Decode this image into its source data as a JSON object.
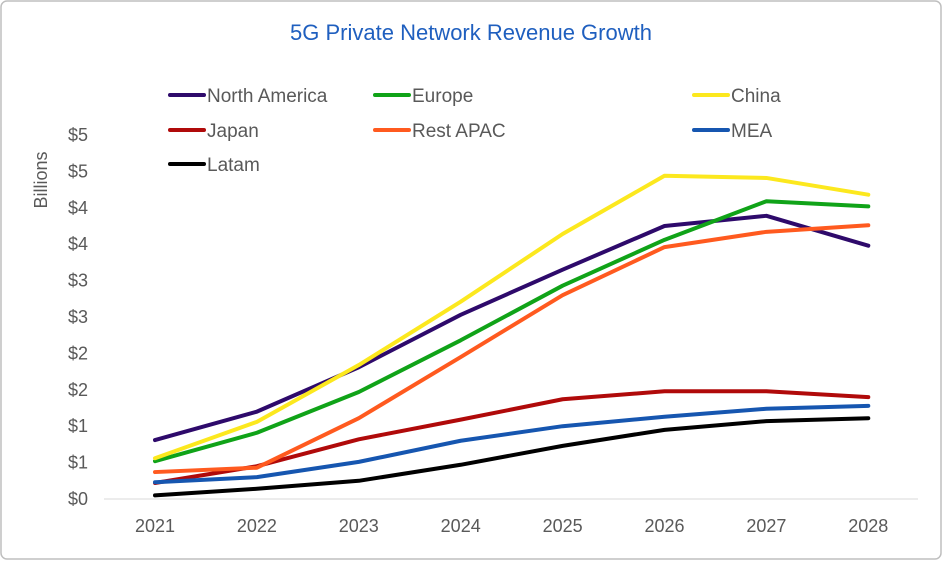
{
  "chart_data": {
    "type": "line",
    "title": "5G Private Network Revenue Growth",
    "xlabel": "",
    "ylabel": "Billions",
    "categories": [
      "2021",
      "2022",
      "2023",
      "2024",
      "2025",
      "2026",
      "2027",
      "2028"
    ],
    "ylim": [
      0,
      5
    ],
    "ytick_values": [
      0,
      0.5,
      1,
      1.5,
      2,
      2.5,
      3,
      3.5,
      4,
      4.5,
      5
    ],
    "ytick_labels": [
      "$0",
      "$1",
      "$1",
      "$2",
      "$2",
      "$3",
      "$3",
      "$4",
      "$4",
      "$5",
      "$5"
    ],
    "grid": false,
    "legend_position": "top",
    "title_color": "#1F5FBF",
    "series": [
      {
        "name": "North America",
        "color": "#2E0A6B",
        "values": [
          0.81,
          1.2,
          1.81,
          2.53,
          3.15,
          3.75,
          3.89,
          3.48
        ]
      },
      {
        "name": "Europe",
        "color": "#10A318",
        "values": [
          0.52,
          0.91,
          1.47,
          2.18,
          2.93,
          3.56,
          4.09,
          4.02
        ]
      },
      {
        "name": "China",
        "color": "#FCE81E",
        "values": [
          0.56,
          1.06,
          1.84,
          2.71,
          3.64,
          4.44,
          4.41,
          4.18
        ]
      },
      {
        "name": "Japan",
        "color": "#B00A0A",
        "values": [
          0.22,
          0.45,
          0.82,
          1.09,
          1.37,
          1.48,
          1.48,
          1.4
        ]
      },
      {
        "name": "Rest APAC",
        "color": "#FF5A1F",
        "values": [
          0.37,
          0.43,
          1.11,
          1.95,
          2.8,
          3.46,
          3.67,
          3.76
        ]
      },
      {
        "name": "MEA",
        "color": "#1656B0",
        "values": [
          0.23,
          0.3,
          0.51,
          0.8,
          1.0,
          1.13,
          1.24,
          1.28
        ]
      },
      {
        "name": "Latam",
        "color": "#000000",
        "values": [
          0.05,
          0.14,
          0.25,
          0.47,
          0.73,
          0.95,
          1.07,
          1.11
        ]
      }
    ]
  }
}
